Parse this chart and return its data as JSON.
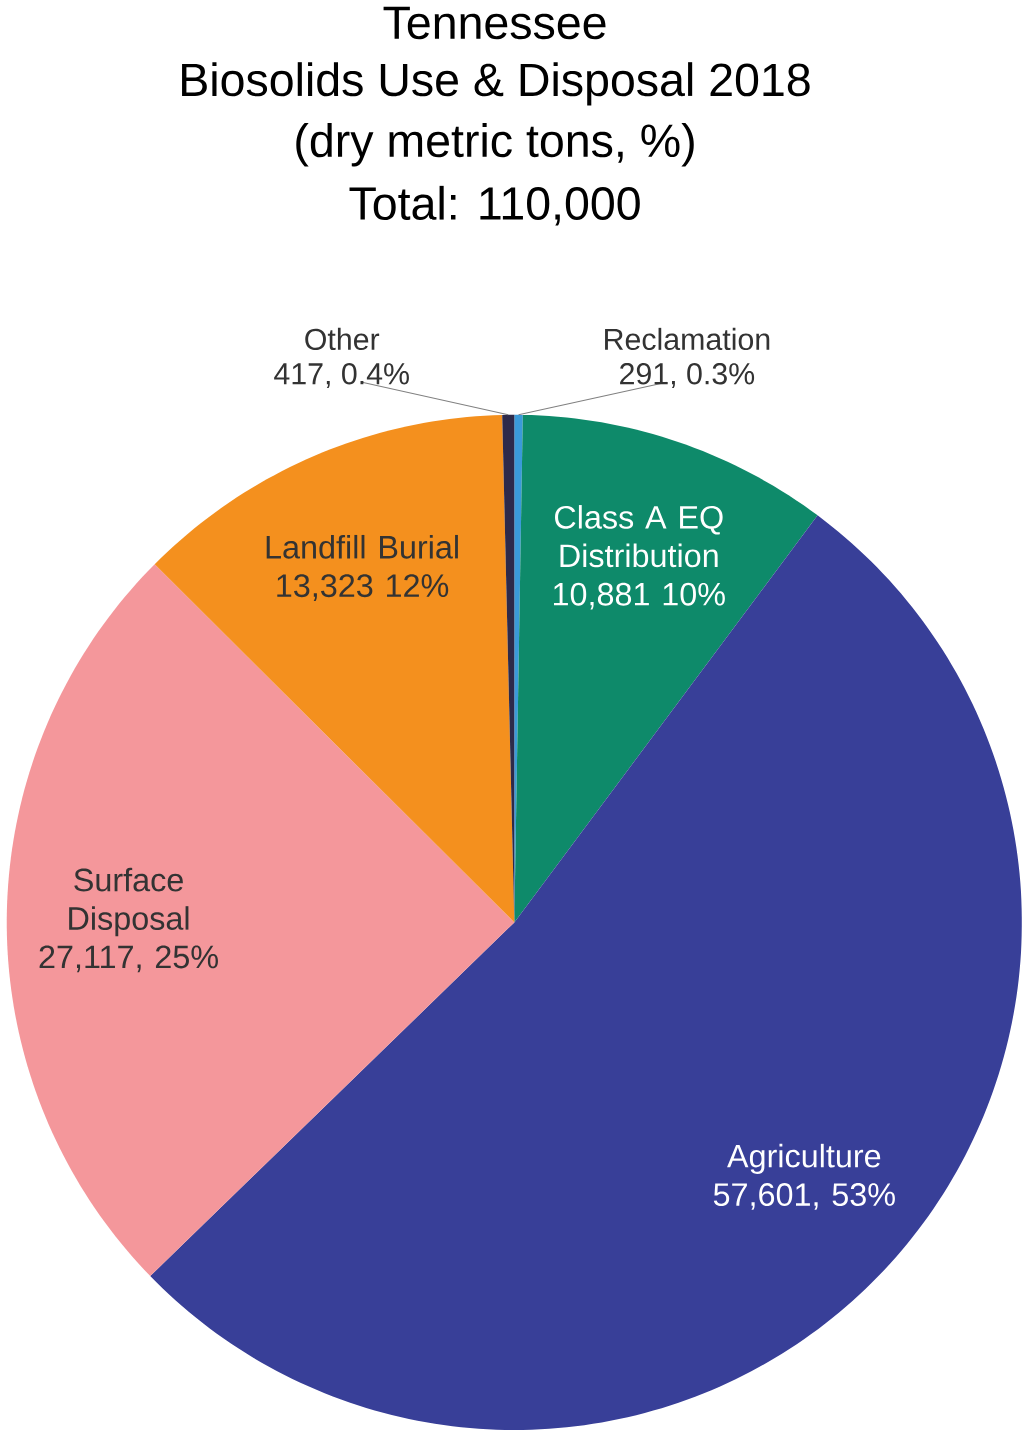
{
  "chart_data": {
    "type": "pie",
    "title": "Tennessee",
    "subtitle": "Biosolids Use & Disposal 2018",
    "annotations": [
      "(dry metric tons, %)",
      "Total: 110,000"
    ],
    "categories": [
      "Reclamation",
      "Class A EQ Distribution",
      "Agriculture",
      "Surface Disposal",
      "Landfill Burial",
      "Other"
    ],
    "values": [
      291,
      10881,
      57601,
      27117,
      13323,
      417
    ],
    "colors": [
      "#3a9ad9",
      "#0e8a6a",
      "#383f98",
      "#f4979b",
      "#f4901e",
      "#2d2a4a"
    ],
    "value_labels": [
      "291, 0.3%",
      "10,881 10%",
      "57,601, 53%",
      "27,117, 25%",
      "13,323 12%",
      "417, 0.4%"
    ],
    "legend": false
  }
}
